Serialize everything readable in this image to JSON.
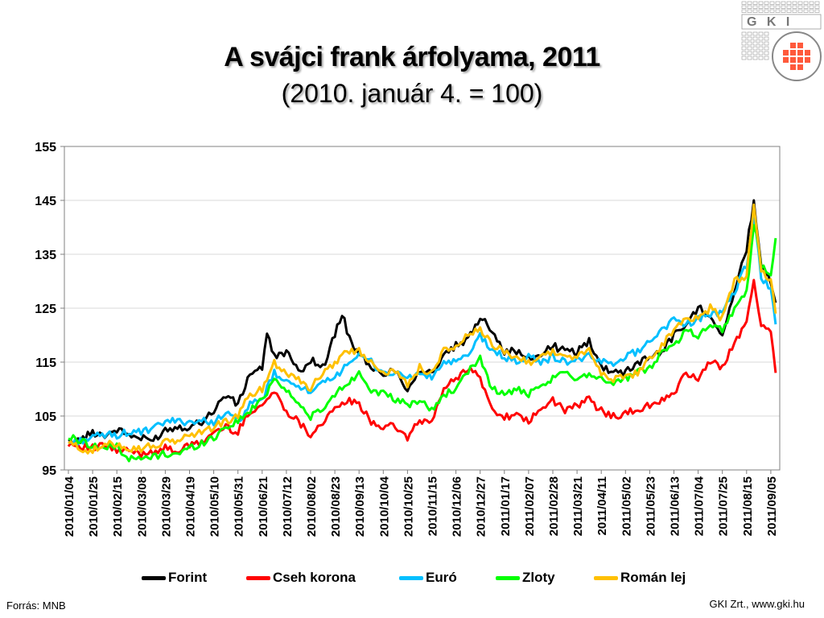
{
  "title": "A svájci frank árfolyama, 2011",
  "subtitle": "(2010. január 4. = 100)",
  "logo_text": "G K I",
  "source": "Forrás: MNB",
  "credit": "GKI Zrt., www.gki.hu",
  "chart_data": {
    "type": "line",
    "title": "A svájci frank árfolyama, 2011",
    "subtitle": "(2010. január 4. = 100)",
    "xlabel": "",
    "ylabel": "",
    "ylim": [
      95,
      155
    ],
    "yticks": [
      95,
      105,
      115,
      125,
      135,
      145,
      155
    ],
    "grid": true,
    "legend_position": "bottom",
    "categories": [
      "2010/01/04",
      "2010/01/25",
      "2010/02/15",
      "2010/03/08",
      "2010/03/29",
      "2010/04/19",
      "2010/05/10",
      "2010/05/31",
      "2010/06/21",
      "2010/07/12",
      "2010/08/02",
      "2010/08/23",
      "2010/09/13",
      "2010/10/04",
      "2010/10/25",
      "2010/11/15",
      "2010/12/06",
      "2010/12/27",
      "2011/01/17",
      "2011/02/07",
      "2011/02/28",
      "2011/03/21",
      "2011/04/11",
      "2011/05/02",
      "2011/05/23",
      "2011/06/13",
      "2011/07/04",
      "2011/07/25",
      "2011/08/15",
      "2011/09/05"
    ],
    "series": [
      {
        "name": "Forint",
        "color": "#000000",
        "x": [
          0,
          0.5,
          1,
          1.5,
          2,
          2.5,
          3,
          3.5,
          4,
          4.5,
          5,
          5.5,
          6,
          6.5,
          7,
          7.5,
          8,
          8.2,
          8.5,
          9,
          9.5,
          10,
          10.5,
          11,
          11.3,
          11.7,
          12,
          12.5,
          13,
          13.5,
          14,
          14.5,
          15,
          15.5,
          16,
          16.5,
          17,
          17.5,
          18,
          18.5,
          19,
          19.5,
          20,
          20.5,
          21,
          21.5,
          22,
          22.5,
          23,
          23.5,
          24,
          24.5,
          25,
          25.5,
          26,
          26.5,
          27,
          27.5,
          28,
          28.3,
          28.6,
          29,
          29.2
        ],
        "values": [
          100,
          100.5,
          102,
          101.5,
          102.5,
          101.5,
          100.8,
          100.5,
          102.5,
          103,
          103,
          104,
          106,
          109,
          107,
          113,
          114,
          120,
          116,
          117,
          113,
          115.5,
          114,
          120,
          124,
          118,
          117,
          113.5,
          113,
          113.5,
          110,
          113.5,
          113,
          116,
          118,
          119,
          123.5,
          121,
          117,
          117,
          115.5,
          116.5,
          118,
          117,
          117,
          119,
          114,
          113.5,
          113,
          115,
          116,
          117,
          120,
          122,
          125,
          124,
          120,
          128,
          136,
          145,
          133,
          130,
          126
        ]
      },
      {
        "name": "Cseh korona",
        "color": "#ff0000",
        "x": [
          0,
          0.5,
          1,
          1.5,
          2,
          2.5,
          3,
          3.5,
          4,
          4.5,
          5,
          5.5,
          6,
          6.5,
          7,
          7.5,
          8,
          8.5,
          9,
          9.5,
          10,
          10.5,
          11,
          11.5,
          12,
          12.5,
          13,
          13.5,
          14,
          14.5,
          15,
          15.5,
          16,
          16.5,
          17,
          17.5,
          18,
          18.5,
          19,
          19.5,
          20,
          20.5,
          21,
          21.5,
          22,
          22.5,
          23,
          23.5,
          24,
          24.5,
          25,
          25.5,
          26,
          26.5,
          27,
          27.5,
          28,
          28.3,
          28.6,
          29,
          29.2
        ],
        "values": [
          100,
          99.5,
          99,
          99.5,
          98.5,
          98.5,
          98,
          98.5,
          99,
          98.5,
          99.5,
          100,
          102,
          103,
          102,
          106,
          107,
          109.5,
          106,
          104,
          101.5,
          104,
          106,
          108,
          107,
          104,
          103,
          103,
          101,
          104,
          104,
          110,
          112,
          114,
          112,
          106,
          105,
          105,
          104,
          106,
          108,
          106,
          107,
          108,
          106,
          105,
          105.5,
          106,
          107,
          108,
          109,
          113,
          112,
          115,
          114,
          119,
          122,
          130,
          122,
          121,
          113
        ]
      },
      {
        "name": "Euró",
        "color": "#00bfff",
        "x": [
          0,
          0.5,
          1,
          1.5,
          2,
          2.5,
          3,
          3.5,
          4,
          4.5,
          5,
          5.5,
          6,
          6.5,
          7,
          7.5,
          8,
          8.5,
          9,
          9.5,
          10,
          10.5,
          11,
          11.5,
          12,
          12.5,
          13,
          13.5,
          14,
          14.5,
          15,
          15.5,
          16,
          16.5,
          17,
          17.5,
          18,
          18.5,
          19,
          19.5,
          20,
          20.5,
          21,
          21.5,
          22,
          22.5,
          23,
          23.5,
          24,
          24.5,
          25,
          25.5,
          26,
          26.5,
          27,
          27.5,
          28,
          28.3,
          28.6,
          29,
          29.2
        ],
        "values": [
          100,
          100.5,
          101,
          101.5,
          101.5,
          102,
          102,
          102.5,
          104,
          104,
          104,
          104,
          104,
          105.5,
          104,
          107,
          108,
          113,
          111,
          111,
          109,
          111,
          112,
          115,
          116,
          115,
          113,
          113,
          112,
          113,
          112,
          115,
          115,
          116,
          120,
          117,
          116,
          115,
          116,
          115,
          116,
          115,
          115.5,
          116,
          115,
          115,
          116,
          117,
          119,
          121,
          123,
          122,
          123,
          124,
          124,
          128,
          133,
          142,
          131,
          128,
          122
        ]
      },
      {
        "name": "Zloty",
        "color": "#00ff00",
        "x": [
          0,
          0.5,
          1,
          1.5,
          2,
          2.5,
          3,
          3.5,
          4,
          4.5,
          5,
          5.5,
          6,
          6.5,
          7,
          7.5,
          8,
          8.5,
          9,
          9.5,
          10,
          10.5,
          11,
          11.5,
          12,
          12.5,
          13,
          13.5,
          14,
          14.5,
          15,
          15.5,
          16,
          16.5,
          17,
          17.5,
          18,
          18.5,
          19,
          19.5,
          20,
          20.5,
          21,
          21.5,
          22,
          22.5,
          23,
          23.5,
          24,
          24.5,
          25,
          25.5,
          26,
          26.5,
          27,
          27.5,
          28,
          28.3,
          28.6,
          29,
          29.2
        ],
        "values": [
          101,
          100.5,
          99.5,
          99,
          99.5,
          97,
          97,
          97.5,
          98,
          98,
          99,
          100,
          101,
          103,
          104,
          106,
          108,
          112,
          110,
          107,
          105,
          106,
          109,
          111,
          113,
          110,
          109,
          108,
          107,
          108,
          106,
          109,
          110,
          113,
          116,
          110,
          109,
          110,
          109,
          110,
          112,
          113,
          112,
          113,
          112,
          111,
          112,
          113,
          114,
          117,
          118,
          121,
          120,
          122,
          121,
          125,
          128,
          141,
          133,
          131,
          138
        ]
      },
      {
        "name": "Román lej",
        "color": "#ffc000",
        "x": [
          0,
          0.5,
          1,
          1.5,
          2,
          2.5,
          3,
          3.5,
          4,
          4.5,
          5,
          5.5,
          6,
          6.5,
          7,
          7.5,
          8,
          8.5,
          9,
          9.5,
          10,
          10.5,
          11,
          11.5,
          12,
          12.5,
          13,
          13.5,
          14,
          14.5,
          15,
          15.5,
          16,
          16.5,
          17,
          17.5,
          18,
          18.5,
          19,
          19.5,
          20,
          20.5,
          21,
          21.5,
          22,
          22.5,
          23,
          23.5,
          24,
          24.5,
          25,
          25.5,
          26,
          26.5,
          27,
          27.5,
          28,
          28.3,
          28.6,
          29,
          29.2
        ],
        "values": [
          100,
          99,
          98.5,
          99.5,
          100,
          99,
          99,
          99.5,
          100,
          100.5,
          101.5,
          102,
          103,
          104,
          105,
          109,
          110,
          115,
          113,
          112,
          110,
          113,
          115,
          117,
          117,
          115,
          113.5,
          113,
          111,
          114,
          113,
          117,
          118,
          120,
          121,
          118,
          117,
          116,
          115,
          116,
          117,
          116,
          116,
          117,
          113,
          112,
          112,
          113,
          116,
          118,
          121,
          123,
          123,
          125,
          123,
          130,
          131,
          144,
          132,
          130,
          124
        ]
      }
    ]
  }
}
